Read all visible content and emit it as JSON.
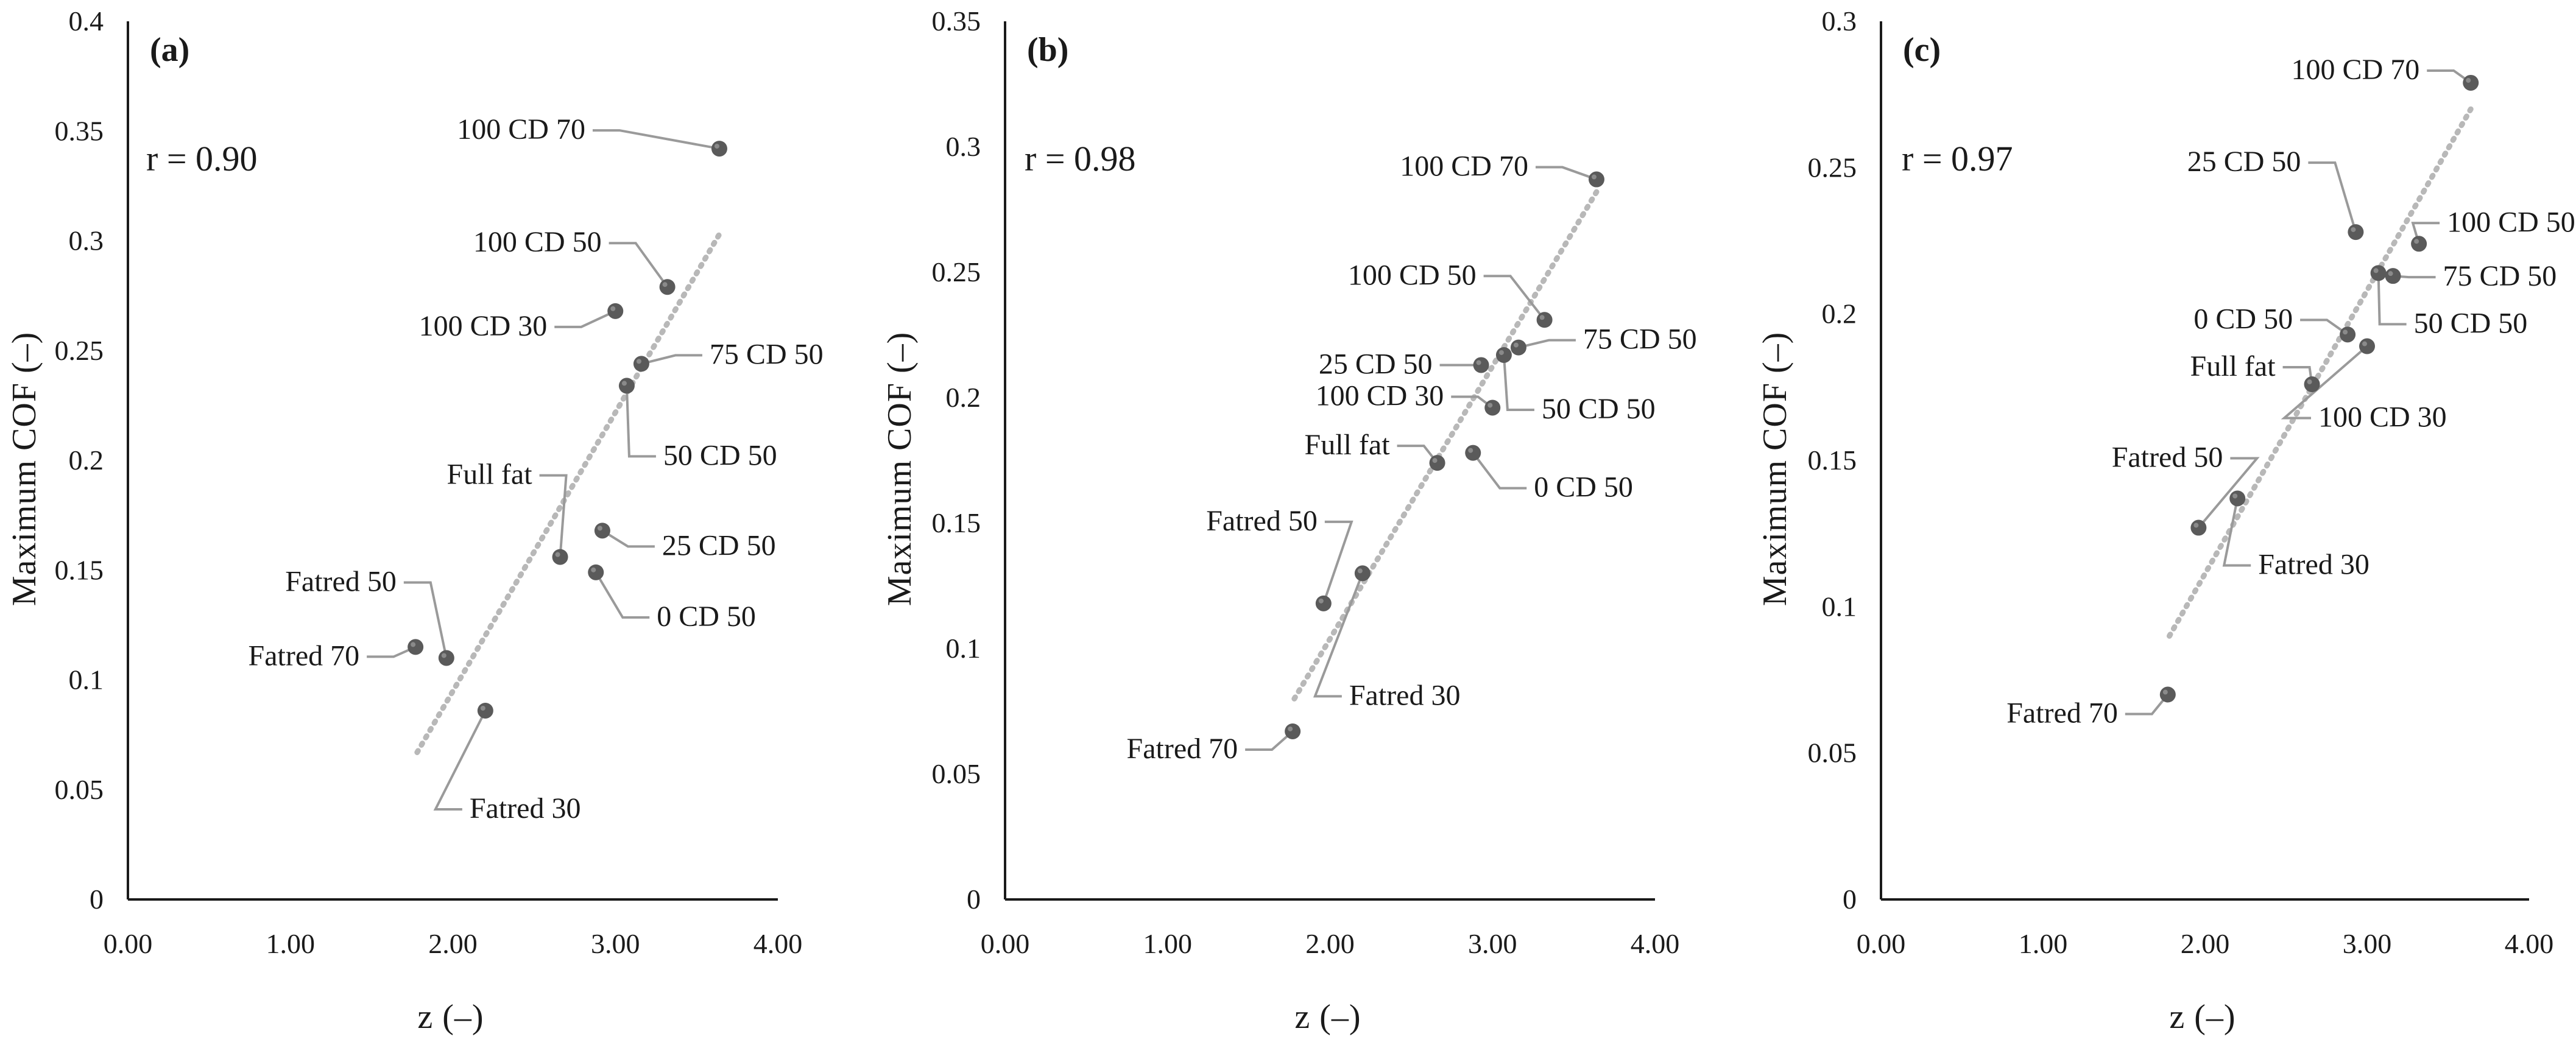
{
  "chart_data": [
    {
      "type": "scatter",
      "panel_label": "(a)",
      "r_text": "r = 0.90",
      "xlabel": "z (–)",
      "ylabel": "Maximum COF (–)",
      "xlim": [
        0,
        4
      ],
      "ylim": [
        0,
        0.4
      ],
      "xticks": [
        "0.00",
        "1.00",
        "2.00",
        "3.00",
        "4.00"
      ],
      "yticks": [
        "0",
        "0.05",
        "0.1",
        "0.15",
        "0.2",
        "0.25",
        "0.3",
        "0.35",
        "0.4"
      ],
      "trendline": [
        [
          1.78,
          0.067
        ],
        [
          3.64,
          0.303
        ]
      ],
      "points": [
        {
          "label": "100 CD 70",
          "x": 3.64,
          "y": 0.342
        },
        {
          "label": "100 CD 50",
          "x": 3.32,
          "y": 0.279
        },
        {
          "label": "100 CD 30",
          "x": 3.0,
          "y": 0.268
        },
        {
          "label": "75 CD 50",
          "x": 3.16,
          "y": 0.244
        },
        {
          "label": "50 CD 50",
          "x": 3.07,
          "y": 0.234
        },
        {
          "label": "Full fat",
          "x": 2.66,
          "y": 0.156
        },
        {
          "label": "25 CD 50",
          "x": 2.92,
          "y": 0.168
        },
        {
          "label": "0 CD 50",
          "x": 2.88,
          "y": 0.149
        },
        {
          "label": "Fatred 50",
          "x": 1.96,
          "y": 0.11
        },
        {
          "label": "Fatred 70",
          "x": 1.77,
          "y": 0.115
        },
        {
          "label": "Fatred 30",
          "x": 2.2,
          "y": 0.086
        }
      ]
    },
    {
      "type": "scatter",
      "panel_label": "(b)",
      "r_text": "r = 0.98",
      "xlabel": "z (–)",
      "ylabel": "Maximum COF (–)",
      "xlim": [
        0,
        4
      ],
      "ylim": [
        0,
        0.35
      ],
      "xticks": [
        "0.00",
        "1.00",
        "2.00",
        "3.00",
        "4.00"
      ],
      "yticks": [
        "0",
        "0.05",
        "0.1",
        "0.15",
        "0.2",
        "0.25",
        "0.3",
        "0.35"
      ],
      "trendline": [
        [
          1.78,
          0.08
        ],
        [
          3.64,
          0.282
        ]
      ],
      "points": [
        {
          "label": "100 CD 70",
          "x": 3.64,
          "y": 0.287
        },
        {
          "label": "100 CD 50",
          "x": 3.32,
          "y": 0.231
        },
        {
          "label": "75 CD 50",
          "x": 3.16,
          "y": 0.22
        },
        {
          "label": "25 CD 50",
          "x": 2.93,
          "y": 0.213
        },
        {
          "label": "50 CD 50",
          "x": 3.07,
          "y": 0.217
        },
        {
          "label": "100 CD 30",
          "x": 3.0,
          "y": 0.196
        },
        {
          "label": "Full fat",
          "x": 2.66,
          "y": 0.174
        },
        {
          "label": "0 CD 50",
          "x": 2.88,
          "y": 0.178
        },
        {
          "label": "Fatred 50",
          "x": 1.96,
          "y": 0.118
        },
        {
          "label": "Fatred 30",
          "x": 2.2,
          "y": 0.13
        },
        {
          "label": "Fatred 70",
          "x": 1.77,
          "y": 0.067
        }
      ]
    },
    {
      "type": "scatter",
      "panel_label": "(c)",
      "r_text": "r = 0.97",
      "xlabel": "z (–)",
      "ylabel": "Maximum COF (–)",
      "xlim": [
        0,
        4
      ],
      "ylim": [
        0,
        0.3
      ],
      "xticks": [
        "0.00",
        "1.00",
        "2.00",
        "3.00",
        "4.00"
      ],
      "yticks": [
        "0",
        "0.05",
        "0.1",
        "0.15",
        "0.2",
        "0.25",
        "0.3"
      ],
      "trendline": [
        [
          1.78,
          0.09
        ],
        [
          3.64,
          0.27
        ]
      ],
      "points": [
        {
          "label": "100 CD 70",
          "x": 3.64,
          "y": 0.279
        },
        {
          "label": "25 CD 50",
          "x": 2.93,
          "y": 0.228
        },
        {
          "label": "100 CD 50",
          "x": 3.32,
          "y": 0.224
        },
        {
          "label": "75 CD 50",
          "x": 3.16,
          "y": 0.213
        },
        {
          "label": "50 CD 50",
          "x": 3.07,
          "y": 0.214
        },
        {
          "label": "0 CD 50",
          "x": 2.88,
          "y": 0.193
        },
        {
          "label": "100 CD 30",
          "x": 3.0,
          "y": 0.189
        },
        {
          "label": "Full fat",
          "x": 2.66,
          "y": 0.176
        },
        {
          "label": "Fatred 50",
          "x": 1.96,
          "y": 0.127
        },
        {
          "label": "Fatred 30",
          "x": 2.2,
          "y": 0.137
        },
        {
          "label": "Fatred 70",
          "x": 1.77,
          "y": 0.07
        }
      ]
    }
  ],
  "colors": {
    "point": "#5a5a5a",
    "trendline": "#b8b8b8",
    "leader": "#9a9a9a",
    "axis": "#1a1a1a"
  }
}
